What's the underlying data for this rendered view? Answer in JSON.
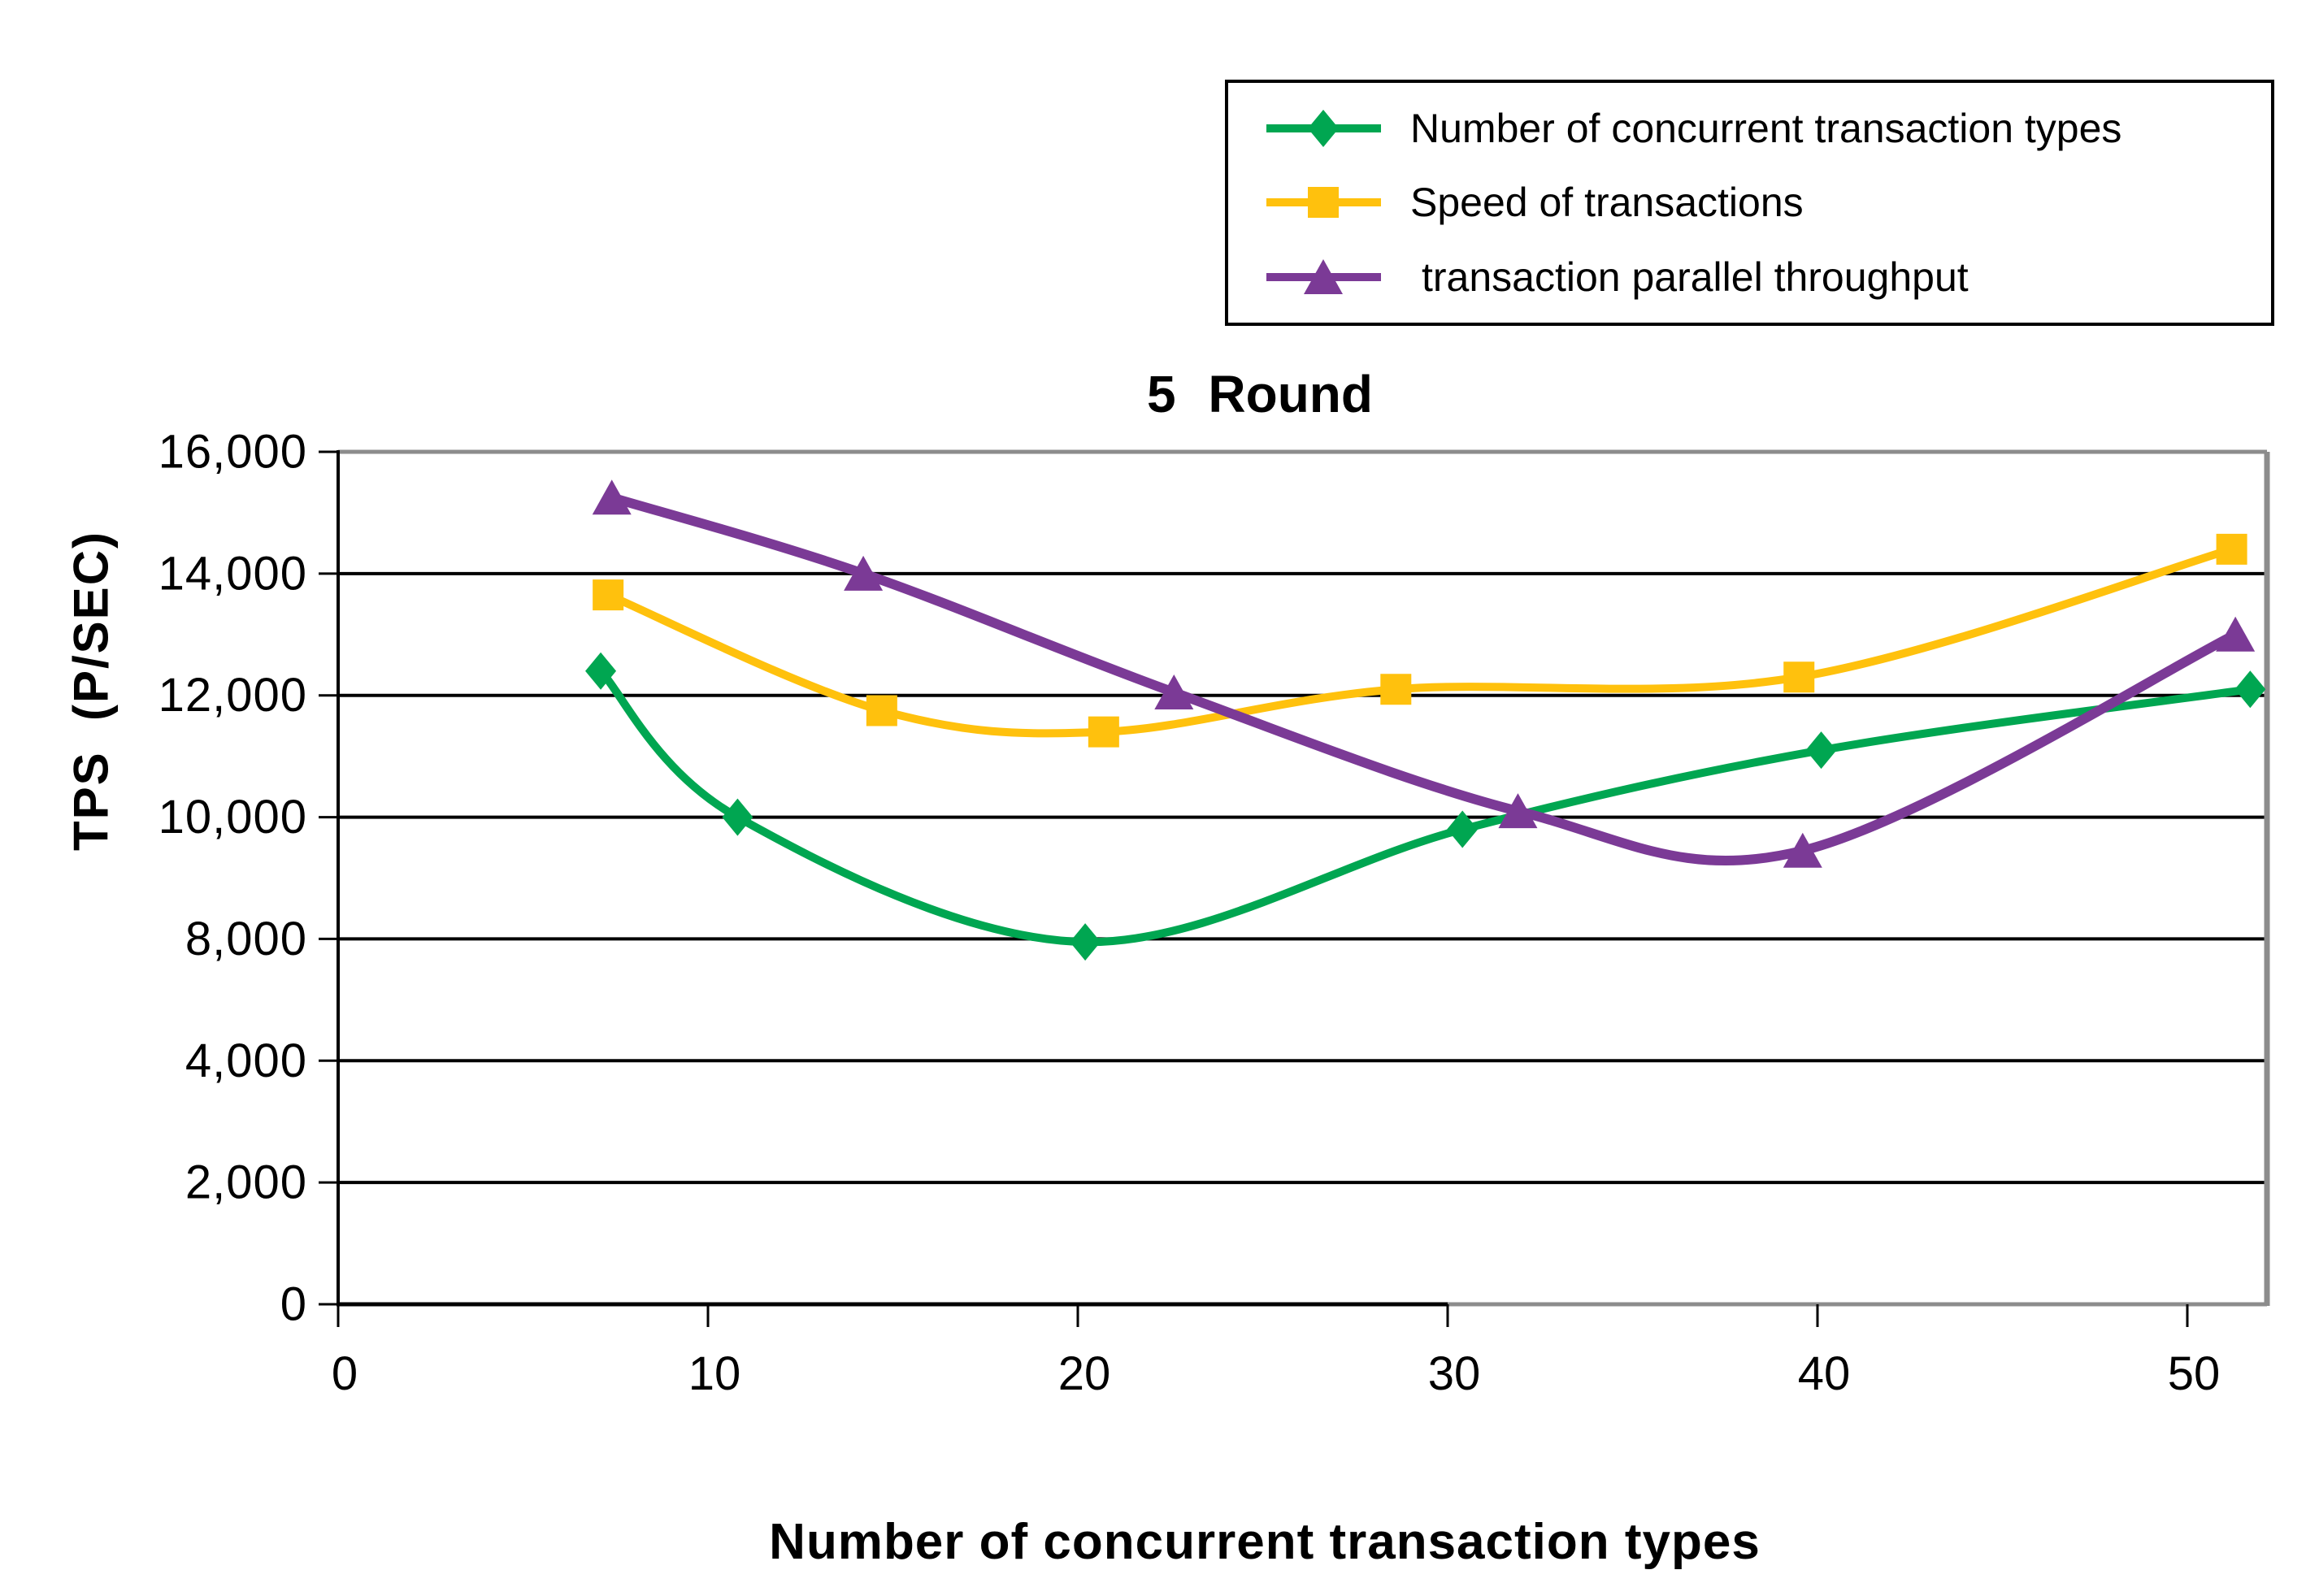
{
  "title": "5 Round",
  "legend": {
    "position": "top-right",
    "items": [
      {
        "label": "Number of concurrent transaction types",
        "color": "#00A651",
        "marker": "diamond"
      },
      {
        "label": "Speed of transactions",
        "color": "#FFC10D",
        "marker": "square"
      },
      {
        "label": "transaction parallel throughput",
        "color": "#7B3A96",
        "marker": "triangle"
      }
    ]
  },
  "chart_data": {
    "type": "line",
    "title": "5 Round",
    "xlabel": "Number of concurrent transaction types",
    "ylabel": "TPS  (P/SEC)",
    "x_ticks": [
      0,
      10,
      20,
      30,
      40,
      50
    ],
    "x_range": [
      0,
      52.2
    ],
    "y_tick_labels": [
      "0",
      "2,000",
      "4,000",
      "8,000",
      "10,000",
      "12,000",
      "14,000",
      "16,000"
    ],
    "y_tick_values": [
      0,
      2000,
      4000,
      8000,
      10000,
      12000,
      14000,
      16000
    ],
    "y_axis_note": "tick labels evenly spaced; 6,000 is omitted on the axis",
    "grid": true,
    "line_style": "smoothed",
    "series": [
      {
        "name": "Number of concurrent transaction types",
        "color": "#00A651",
        "marker": "diamond",
        "points": [
          [
            7.1,
            12400
          ],
          [
            10.8,
            10000
          ],
          [
            20.2,
            7900
          ],
          [
            30.4,
            9800
          ],
          [
            40.1,
            11100
          ],
          [
            51.7,
            12100
          ]
        ]
      },
      {
        "name": "Speed of transactions",
        "color": "#FFC10D",
        "marker": "square",
        "points": [
          [
            7.3,
            13650
          ],
          [
            14.7,
            11750
          ],
          [
            20.7,
            11400
          ],
          [
            28.6,
            12100
          ],
          [
            39.5,
            12300
          ],
          [
            51.2,
            14400
          ]
        ]
      },
      {
        "name": "transaction parallel throughput",
        "color": "#7B3A96",
        "marker": "triangle",
        "points": [
          [
            7.4,
            15250
          ],
          [
            14.2,
            14000
          ],
          [
            22.6,
            12050
          ],
          [
            31.9,
            10100
          ],
          [
            39.6,
            9450
          ],
          [
            51.3,
            13000
          ]
        ]
      }
    ]
  }
}
